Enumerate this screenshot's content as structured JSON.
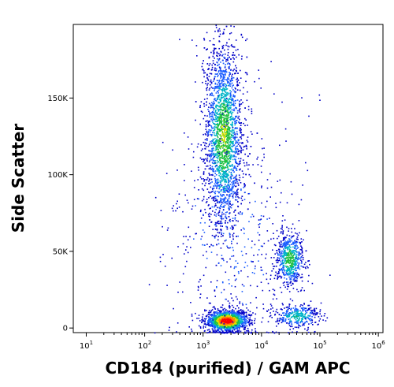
{
  "chart_data": {
    "type": "scatter",
    "title": "",
    "xlabel": "CD184 (purified) / GAM APC",
    "ylabel": "Side Scatter",
    "xscale": "log",
    "xlim": [
      6,
      1200000
    ],
    "ylim": [
      -3000,
      198000
    ],
    "grid": false,
    "legend": "none",
    "x_ticks": [
      {
        "base": "10",
        "exp": "1",
        "value": 10
      },
      {
        "base": "10",
        "exp": "2",
        "value": 100
      },
      {
        "base": "10",
        "exp": "3",
        "value": 1000
      },
      {
        "base": "10",
        "exp": "4",
        "value": 10000
      },
      {
        "base": "10",
        "exp": "5",
        "value": 100000
      },
      {
        "base": "10",
        "exp": "6",
        "value": 1000000
      }
    ],
    "y_ticks": [
      {
        "label": "0",
        "value": 0
      },
      {
        "label": "50K",
        "value": 50000
      },
      {
        "label": "100K",
        "value": 100000
      },
      {
        "label": "150K",
        "value": 150000
      }
    ],
    "density_colors": [
      "#0000c8",
      "#1a5cff",
      "#00b4c8",
      "#20c040",
      "#e0e000",
      "#ff8000",
      "#ff0000"
    ],
    "populations": [
      {
        "x_center": 2500,
        "x_spread_decades": 0.18,
        "y_center": 5000,
        "y_spread": 3500,
        "count": 1400,
        "peak_density": 1.0
      },
      {
        "x_center": 2200,
        "x_spread_decades": 0.16,
        "y_center": 125000,
        "y_spread": 30000,
        "count": 2600,
        "peak_density": 0.55
      },
      {
        "x_center": 30000,
        "x_spread_decades": 0.12,
        "y_center": 45000,
        "y_spread": 9000,
        "count": 650,
        "peak_density": 0.5
      },
      {
        "x_center": 40000,
        "x_spread_decades": 0.2,
        "y_center": 8000,
        "y_spread": 4000,
        "count": 350,
        "peak_density": 0.4
      },
      {
        "x_center": 3000,
        "x_spread_decades": 0.6,
        "y_center": 60000,
        "y_spread": 45000,
        "count": 500,
        "peak_density": 0.15
      }
    ]
  }
}
